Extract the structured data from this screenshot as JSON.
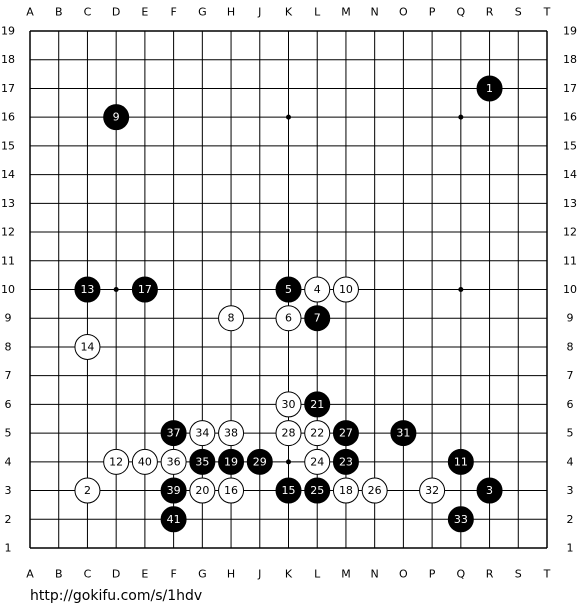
{
  "board": {
    "columns": [
      "A",
      "B",
      "C",
      "D",
      "E",
      "F",
      "G",
      "H",
      "J",
      "K",
      "L",
      "M",
      "N",
      "O",
      "P",
      "Q",
      "R",
      "S",
      "T"
    ],
    "rows": [
      19,
      18,
      17,
      16,
      15,
      14,
      13,
      12,
      11,
      10,
      9,
      8,
      7,
      6,
      5,
      4,
      3,
      2,
      1
    ],
    "moves": [
      {
        "number": 1,
        "color": "black",
        "col": "R",
        "row": 17
      },
      {
        "number": 2,
        "color": "white",
        "col": "C",
        "row": 3
      },
      {
        "number": 3,
        "color": "black",
        "col": "R",
        "row": 3
      },
      {
        "number": 4,
        "color": "white",
        "col": "L",
        "row": 10
      },
      {
        "number": 5,
        "color": "black",
        "col": "K",
        "row": 10
      },
      {
        "number": 6,
        "color": "white",
        "col": "K",
        "row": 9
      },
      {
        "number": 7,
        "color": "black",
        "col": "L",
        "row": 9
      },
      {
        "number": 8,
        "color": "white",
        "col": "H",
        "row": 9
      },
      {
        "number": 9,
        "color": "black",
        "col": "D",
        "row": 16
      },
      {
        "number": 10,
        "color": "white",
        "col": "M",
        "row": 10
      },
      {
        "number": 11,
        "color": "black",
        "col": "Q",
        "row": 4
      },
      {
        "number": 12,
        "color": "white",
        "col": "D",
        "row": 4
      },
      {
        "number": 13,
        "color": "black",
        "col": "C",
        "row": 10
      },
      {
        "number": 14,
        "color": "white",
        "col": "C",
        "row": 8
      },
      {
        "number": 15,
        "color": "black",
        "col": "K",
        "row": 3
      },
      {
        "number": 16,
        "color": "white",
        "col": "H",
        "row": 3
      },
      {
        "number": 17,
        "color": "black",
        "col": "E",
        "row": 10
      },
      {
        "number": 18,
        "color": "white",
        "col": "M",
        "row": 3
      },
      {
        "number": 19,
        "color": "black",
        "col": "H",
        "row": 4
      },
      {
        "number": 20,
        "color": "white",
        "col": "G",
        "row": 3
      },
      {
        "number": 21,
        "color": "black",
        "col": "L",
        "row": 6
      },
      {
        "number": 22,
        "color": "white",
        "col": "L",
        "row": 5
      },
      {
        "number": 23,
        "color": "black",
        "col": "M",
        "row": 4
      },
      {
        "number": 24,
        "color": "white",
        "col": "L",
        "row": 4
      },
      {
        "number": 25,
        "color": "black",
        "col": "L",
        "row": 3
      },
      {
        "number": 26,
        "color": "white",
        "col": "N",
        "row": 3
      },
      {
        "number": 27,
        "color": "black",
        "col": "M",
        "row": 5
      },
      {
        "number": 28,
        "color": "white",
        "col": "K",
        "row": 5
      },
      {
        "number": 29,
        "color": "black",
        "col": "J",
        "row": 4
      },
      {
        "number": 30,
        "color": "white",
        "col": "K",
        "row": 6
      },
      {
        "number": 31,
        "color": "black",
        "col": "O",
        "row": 5
      },
      {
        "number": 32,
        "color": "white",
        "col": "P",
        "row": 3
      },
      {
        "number": 33,
        "color": "black",
        "col": "Q",
        "row": 2
      },
      {
        "number": 34,
        "color": "white",
        "col": "G",
        "row": 5
      },
      {
        "number": 35,
        "color": "black",
        "col": "G",
        "row": 4
      },
      {
        "number": 36,
        "color": "white",
        "col": "F",
        "row": 4
      },
      {
        "number": 37,
        "color": "black",
        "col": "F",
        "row": 5
      },
      {
        "number": 38,
        "color": "white",
        "col": "H",
        "row": 5
      },
      {
        "number": 39,
        "color": "black",
        "col": "F",
        "row": 3
      },
      {
        "number": 40,
        "color": "white",
        "col": "E",
        "row": 4
      },
      {
        "number": 41,
        "color": "black",
        "col": "F",
        "row": 2
      }
    ]
  },
  "footer": {
    "url": "http://gokifu.com/s/1hdv"
  }
}
